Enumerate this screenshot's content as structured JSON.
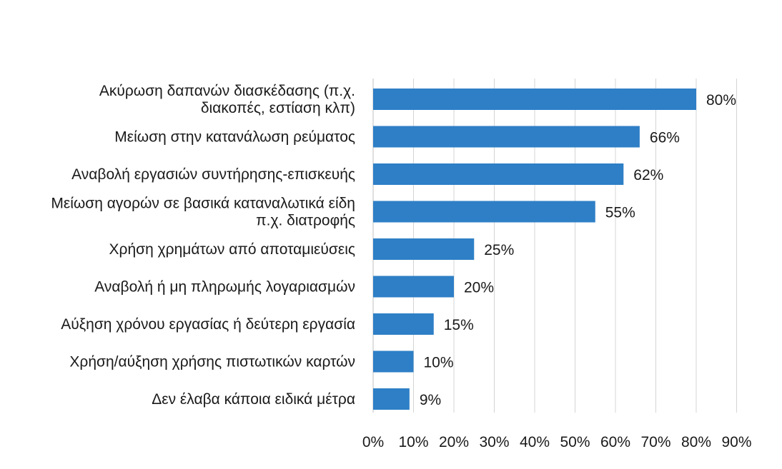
{
  "chart_data": {
    "type": "bar",
    "orientation": "horizontal",
    "title": "",
    "xlabel": "",
    "ylabel": "",
    "xlim": [
      0,
      90
    ],
    "ticks": [
      "0%",
      "10%",
      "20%",
      "30%",
      "40%",
      "50%",
      "60%",
      "70%",
      "80%",
      "90%"
    ],
    "tick_values": [
      0,
      10,
      20,
      30,
      40,
      50,
      60,
      70,
      80,
      90
    ],
    "grid": true,
    "bar_color": "#2e7fc6",
    "categories": [
      [
        "Ακύρωση δαπανών διασκέδασης (π.χ.",
        "διακοπές, εστίαση κλπ)"
      ],
      [
        "Μείωση στην κατανάλωση ρεύματος"
      ],
      [
        "Αναβολή εργασιών συντήρησης-επισκευής"
      ],
      [
        "Μείωση αγορών σε βασικά καταναλωτικά είδη",
        "π.χ. διατροφής"
      ],
      [
        "Χρήση χρημάτων από αποταμιεύσεις"
      ],
      [
        "Αναβολή ή μη πληρωμής  λογαριασμών"
      ],
      [
        "Αύξηση χρόνου εργασίας ή δεύτερη εργασία"
      ],
      [
        "Χρήση/αύξηση χρήσης πιστωτικών καρτών"
      ],
      [
        "Δεν έλαβα κάποια ειδικά μέτρα"
      ]
    ],
    "values": [
      80,
      66,
      62,
      55,
      25,
      20,
      15,
      10,
      9
    ],
    "value_labels": [
      "80%",
      "66%",
      "62%",
      "55%",
      "25%",
      "20%",
      "15%",
      "10%",
      "9%"
    ]
  }
}
